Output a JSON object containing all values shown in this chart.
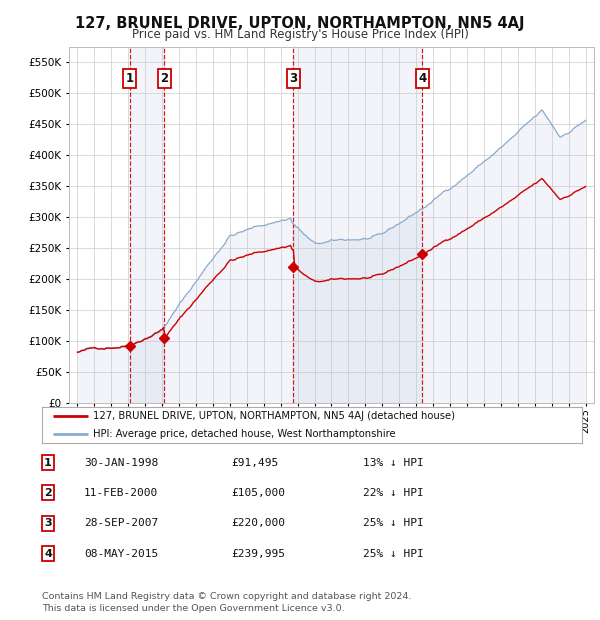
{
  "title": "127, BRUNEL DRIVE, UPTON, NORTHAMPTON, NN5 4AJ",
  "subtitle": "Price paid vs. HM Land Registry's House Price Index (HPI)",
  "background_color": "#ffffff",
  "plot_bg_color": "#ffffff",
  "grid_color": "#cccccc",
  "sale_dates": [
    1998.08,
    2000.12,
    2007.75,
    2015.36
  ],
  "sale_prices": [
    91495,
    105000,
    220000,
    239995
  ],
  "sale_labels": [
    "1",
    "2",
    "3",
    "4"
  ],
  "vline_color": "#cc0000",
  "sale_marker_color": "#cc0000",
  "hpi_line_color": "#88aacc",
  "hpi_shade_color": "#ddeeff",
  "legend_entries": [
    "127, BRUNEL DRIVE, UPTON, NORTHAMPTON, NN5 4AJ (detached house)",
    "HPI: Average price, detached house, West Northamptonshire"
  ],
  "table_rows": [
    [
      "1",
      "30-JAN-1998",
      "£91,495",
      "13% ↓ HPI"
    ],
    [
      "2",
      "11-FEB-2000",
      "£105,000",
      "22% ↓ HPI"
    ],
    [
      "3",
      "28-SEP-2007",
      "£220,000",
      "25% ↓ HPI"
    ],
    [
      "4",
      "08-MAY-2015",
      "£239,995",
      "25% ↓ HPI"
    ]
  ],
  "footnote": "Contains HM Land Registry data © Crown copyright and database right 2024.\nThis data is licensed under the Open Government Licence v3.0.",
  "ylim": [
    0,
    575000
  ],
  "yticks": [
    0,
    50000,
    100000,
    150000,
    200000,
    250000,
    300000,
    350000,
    400000,
    450000,
    500000,
    550000
  ],
  "xlim_start": 1994.5,
  "xlim_end": 2025.5,
  "xticks": [
    1995,
    1996,
    1997,
    1998,
    1999,
    2000,
    2001,
    2002,
    2003,
    2004,
    2005,
    2006,
    2007,
    2008,
    2009,
    2010,
    2011,
    2012,
    2013,
    2014,
    2015,
    2016,
    2017,
    2018,
    2019,
    2020,
    2021,
    2022,
    2023,
    2024,
    2025
  ]
}
